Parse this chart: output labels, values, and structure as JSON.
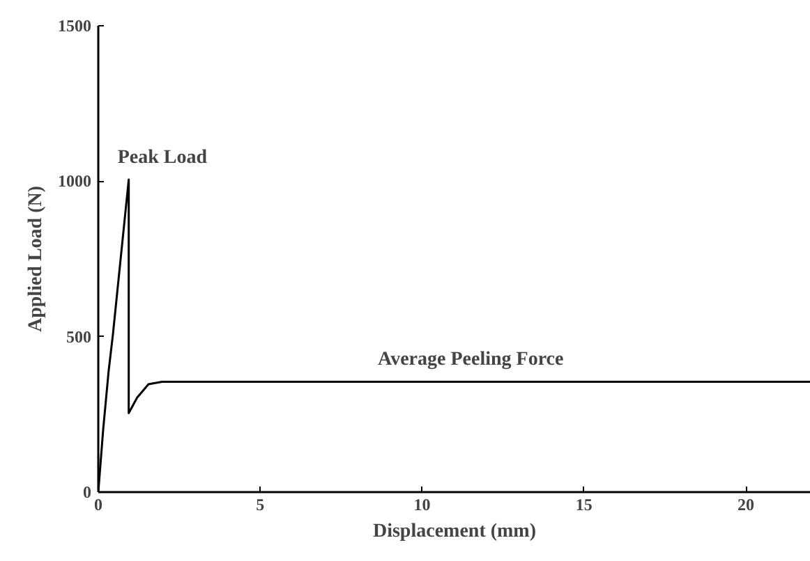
{
  "chart_data": {
    "type": "line",
    "xlabel": "Displacement (mm)",
    "ylabel": "Applied Load (N)",
    "xlim": [
      0,
      22
    ],
    "ylim": [
      0,
      1500
    ],
    "xticks": [
      0,
      5,
      10,
      15,
      20
    ],
    "yticks": [
      0,
      500,
      1000,
      1500
    ],
    "grid": false,
    "series": [
      {
        "color": "#000000",
        "x": [
          0,
          0.15,
          0.32,
          0.45,
          0.94,
          0.94,
          1.2,
          1.55,
          1.97,
          22
        ],
        "values": [
          0,
          200,
          390,
          505,
          1005,
          254,
          304,
          347,
          355,
          355
        ]
      }
    ],
    "annotations": [
      {
        "text": "Peak Load",
        "x": 0.94,
        "y": 1005
      },
      {
        "text": "Average Peeling Force",
        "x": 11.5,
        "y": 355
      }
    ]
  }
}
